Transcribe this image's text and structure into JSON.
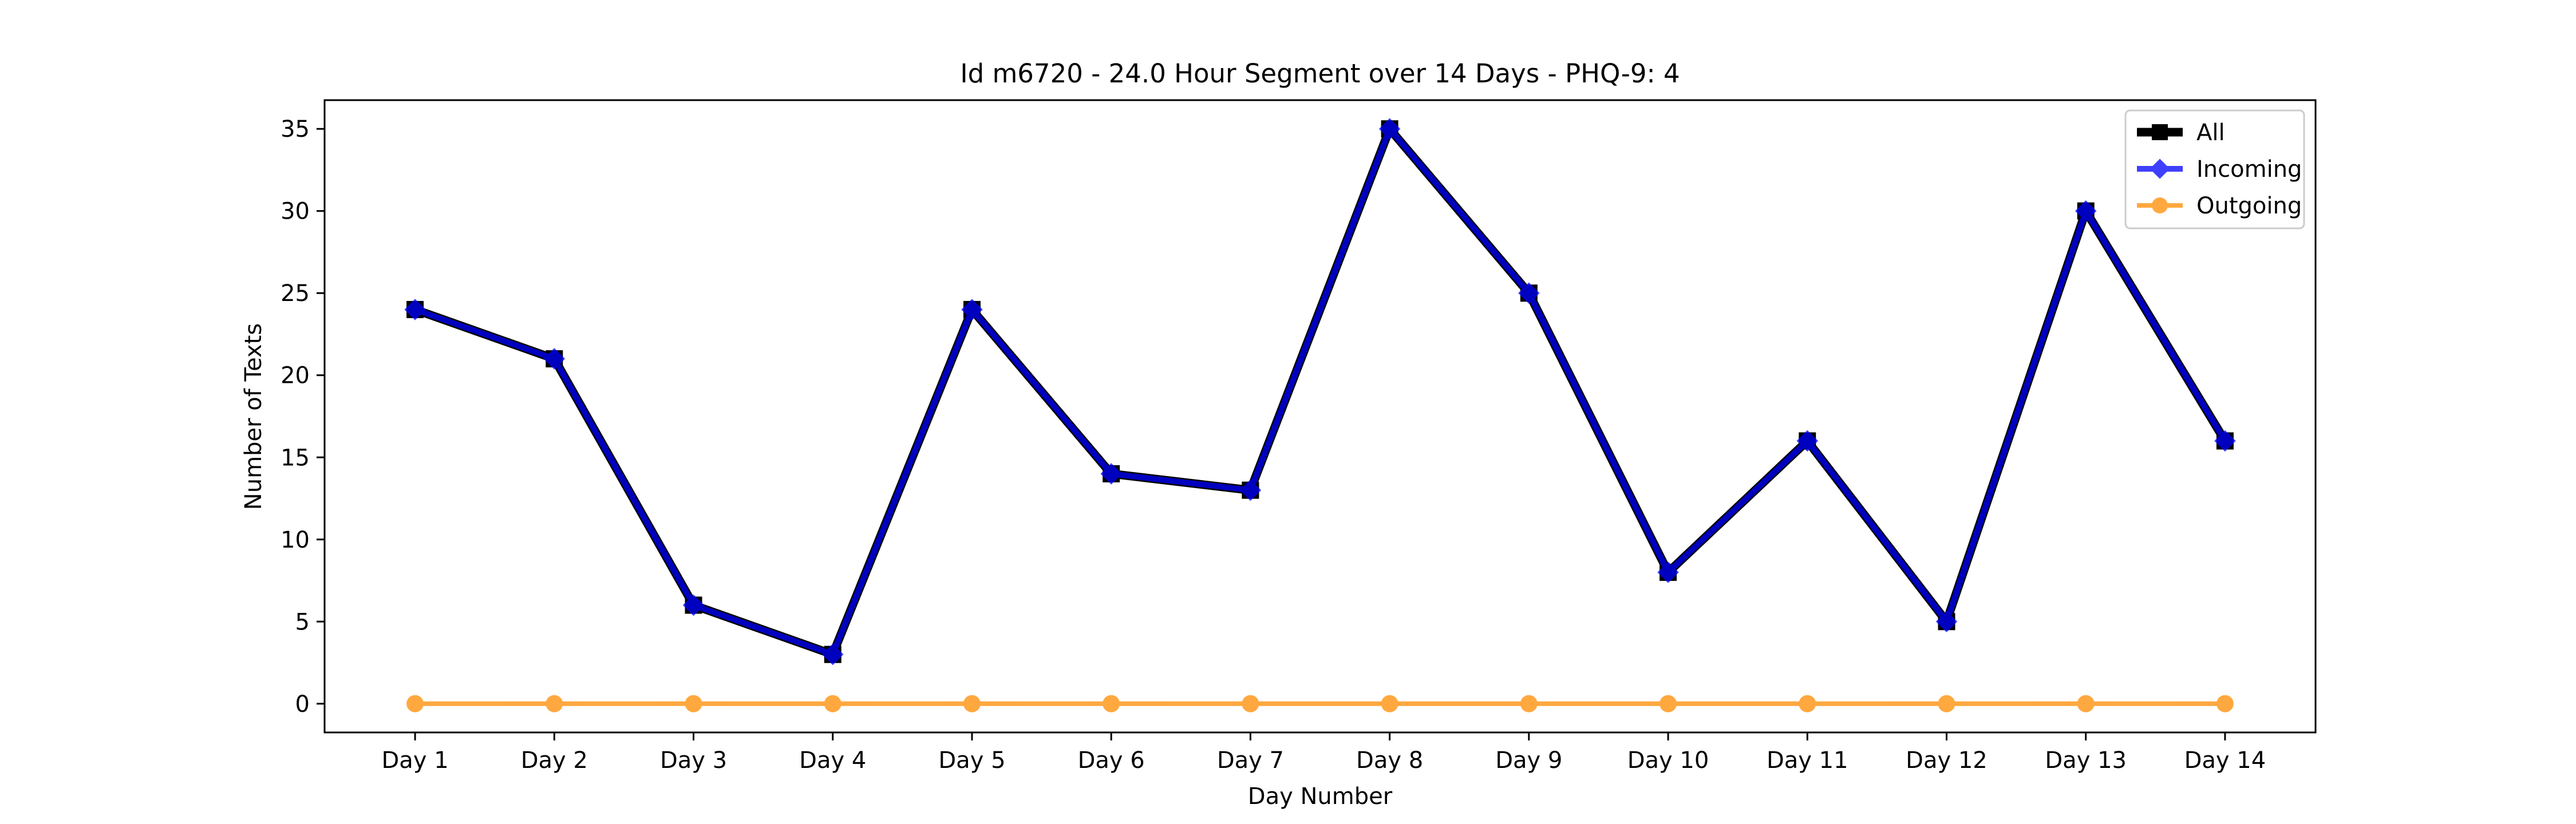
{
  "chart_data": {
    "type": "line",
    "title": "Id m6720 - 24.0 Hour Segment over 14 Days - PHQ-9: 4",
    "xlabel": "Day Number",
    "ylabel": "Number of Texts",
    "categories": [
      "Day 1",
      "Day 2",
      "Day 3",
      "Day 4",
      "Day 5",
      "Day 6",
      "Day 7",
      "Day 8",
      "Day 9",
      "Day 10",
      "Day 11",
      "Day 12",
      "Day 13",
      "Day 14"
    ],
    "ylim": [
      -1.75,
      36.75
    ],
    "yticks": [
      0,
      5,
      10,
      15,
      20,
      25,
      30,
      35
    ],
    "grid": false,
    "legend_position": "top-right",
    "series": [
      {
        "name": "All",
        "color": "#000000",
        "marker": "square",
        "values": [
          24,
          21,
          6,
          3,
          24,
          14,
          13,
          35,
          25,
          8,
          16,
          5,
          30,
          16
        ]
      },
      {
        "name": "Incoming",
        "color": "#0000ff",
        "marker": "diamond",
        "values": [
          24,
          21,
          6,
          3,
          24,
          14,
          13,
          35,
          25,
          8,
          16,
          5,
          30,
          16
        ]
      },
      {
        "name": "Outgoing",
        "color": "#ff8c00",
        "marker": "circle",
        "values": [
          0,
          0,
          0,
          0,
          0,
          0,
          0,
          0,
          0,
          0,
          0,
          0,
          0,
          0
        ]
      }
    ]
  }
}
